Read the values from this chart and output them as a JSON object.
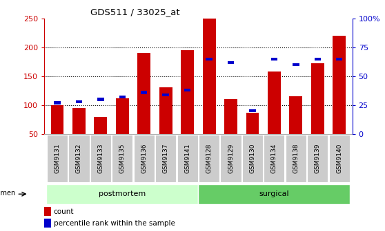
{
  "title": "GDS511 / 33025_at",
  "samples": [
    "GSM9131",
    "GSM9132",
    "GSM9133",
    "GSM9135",
    "GSM9136",
    "GSM9137",
    "GSM9141",
    "GSM9128",
    "GSM9129",
    "GSM9130",
    "GSM9134",
    "GSM9138",
    "GSM9139",
    "GSM9140"
  ],
  "counts": [
    100,
    95,
    80,
    112,
    190,
    131,
    195,
    250,
    111,
    87,
    158,
    115,
    173,
    220
  ],
  "percentile_ranks": [
    27,
    28,
    30,
    32,
    36,
    34,
    38,
    65,
    62,
    20,
    65,
    60,
    65,
    65
  ],
  "bar_color": "#cc0000",
  "pct_color": "#0000cc",
  "ylim_left": [
    50,
    250
  ],
  "ylim_right": [
    0,
    100
  ],
  "yticks_left": [
    50,
    100,
    150,
    200,
    250
  ],
  "yticks_right": [
    0,
    25,
    50,
    75,
    100
  ],
  "yticklabels_right": [
    "0",
    "25",
    "50",
    "75",
    "100%"
  ],
  "groups": [
    {
      "label": "postmortem",
      "start": 0,
      "end": 7,
      "color": "#ccffcc"
    },
    {
      "label": "surgical",
      "start": 7,
      "end": 14,
      "color": "#66cc66"
    }
  ],
  "legend_count_label": "count",
  "legend_pct_label": "percentile rank within the sample",
  "specimen_label": "specimen",
  "background_color": "#ffffff",
  "left_tick_color": "#cc0000",
  "right_tick_color": "#0000cc",
  "bar_width": 0.6,
  "pct_bar_width": 0.3,
  "pct_bar_height": 5
}
